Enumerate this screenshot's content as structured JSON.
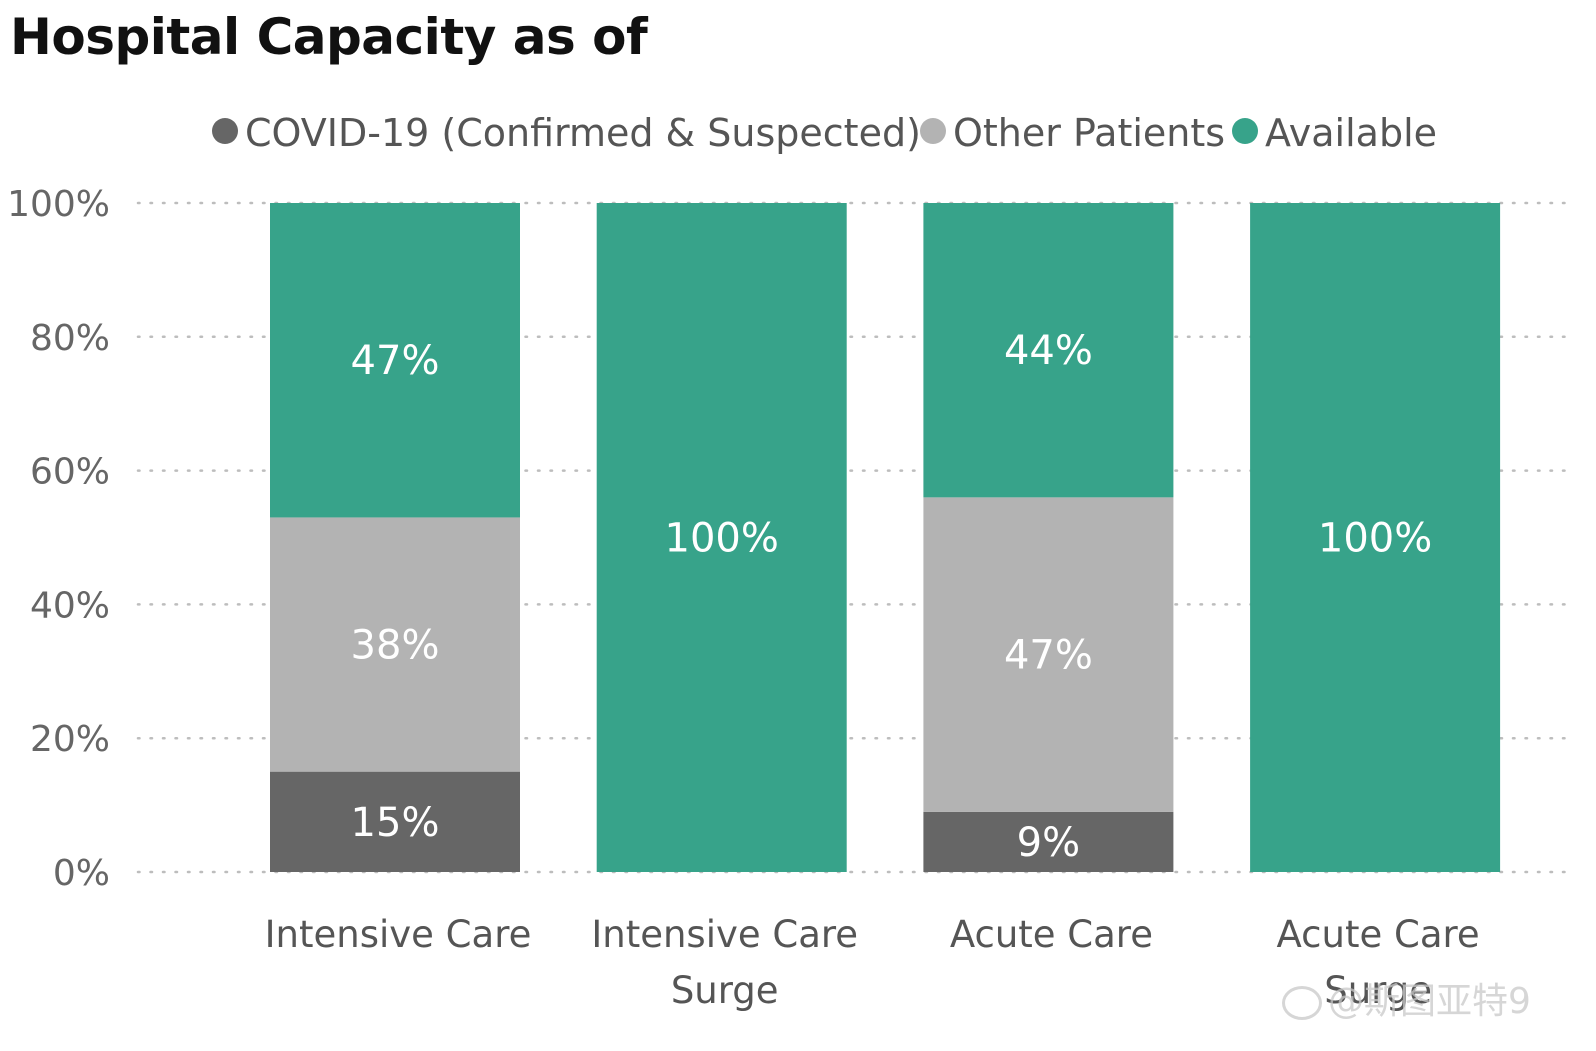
{
  "chart_data": {
    "type": "bar",
    "stacked": true,
    "percent": true,
    "title": "Hospital Capacity as of",
    "categories": [
      [
        "Intensive Care"
      ],
      [
        "Intensive Care",
        "Surge"
      ],
      [
        "Acute Care"
      ],
      [
        "Acute Care",
        "Surge"
      ]
    ],
    "series": [
      {
        "name": "COVID-19 (Confirmed & Suspected)",
        "color": "#666666",
        "values": [
          15,
          0,
          9,
          0
        ]
      },
      {
        "name": "Other Patients",
        "color": "#b3b3b3",
        "values": [
          38,
          0,
          47,
          0
        ]
      },
      {
        "name": "Available",
        "color": "#37a38a",
        "values": [
          47,
          100,
          44,
          100
        ]
      }
    ],
    "ylim": [
      0,
      100
    ],
    "yticks": [
      "0%",
      "20%",
      "40%",
      "60%",
      "80%",
      "100%"
    ],
    "grid": true,
    "legend_position": "top"
  },
  "watermark": "@斯图亚特9"
}
